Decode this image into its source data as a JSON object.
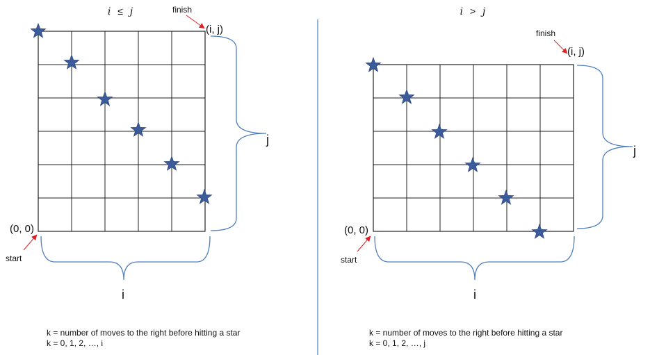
{
  "left_panel": {
    "condition_lhs": "i",
    "condition_op": "≤",
    "condition_rhs": "j",
    "finish_label": "finish",
    "end_point_label": "(i, j)",
    "start_label": "start",
    "origin_label": "(0, 0)",
    "width_label": "i",
    "height_label": "j",
    "note_line1": "k = number of moves to the right before hitting a star",
    "note_line2": "k = 0, 1, 2, …, i"
  },
  "right_panel": {
    "condition_lhs": "i",
    "condition_op": ">",
    "condition_rhs": "j",
    "finish_label": "finish",
    "end_point_label": "(i, j)",
    "start_label": "start",
    "origin_label": "(0, 0)",
    "width_label": "i",
    "height_label": "j",
    "note_line1": "k = number of moves to the right before hitting a star",
    "note_line2": "k = 0, 1, 2, …, j"
  },
  "colors": {
    "star": "#3b5b9a",
    "star_stroke": "#2e4a80",
    "brace": "#4f7fbf",
    "arrow": "#e02020",
    "grid": "#222222",
    "divider": "#4f7fbf"
  }
}
